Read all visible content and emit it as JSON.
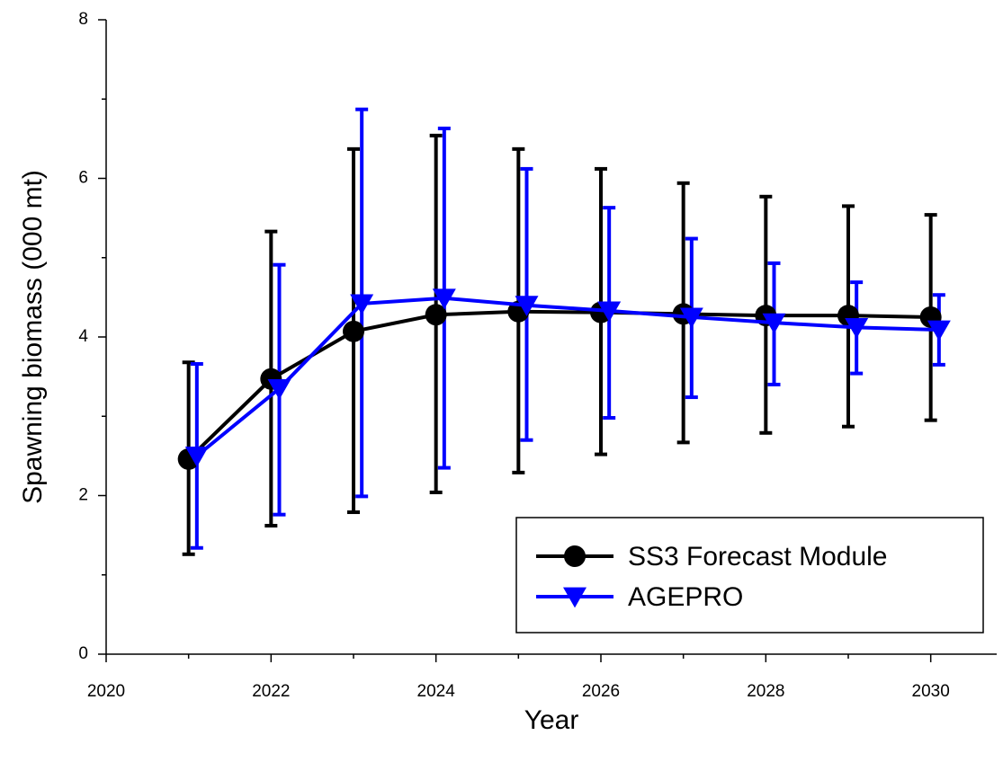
{
  "chart_data": {
    "type": "line",
    "x_label": "Year",
    "y_label": "Spawning biomass (000 mt)",
    "xlim": [
      2020,
      2030.8
    ],
    "ylim": [
      0,
      8
    ],
    "xticks": [
      2020,
      2022,
      2024,
      2026,
      2028,
      2030
    ],
    "xminorticks": [
      2021,
      2023,
      2025,
      2027,
      2029
    ],
    "yticks": [
      0,
      2,
      4,
      6,
      8
    ],
    "yminorticks": [
      1,
      3,
      5,
      7
    ],
    "grid": false,
    "legend": "lower right",
    "series": [
      {
        "name": "SS3 Forecast Module",
        "color": "#000000",
        "marker": "circle",
        "x": [
          2021,
          2022,
          2023,
          2024,
          2025,
          2026,
          2027,
          2028,
          2029,
          2030
        ],
        "values": [
          2.46,
          3.47,
          4.07,
          4.28,
          4.32,
          4.31,
          4.29,
          4.27,
          4.27,
          4.25
        ],
        "lower": [
          1.26,
          1.62,
          1.79,
          2.04,
          2.29,
          2.52,
          2.67,
          2.79,
          2.87,
          2.95
        ],
        "upper": [
          3.68,
          5.33,
          6.37,
          6.54,
          6.37,
          6.12,
          5.94,
          5.77,
          5.65,
          5.54
        ]
      },
      {
        "name": "AGEPRO",
        "color": "#0000ff",
        "marker": "triangle-down",
        "x": [
          2021.1,
          2022.1,
          2023.1,
          2024.1,
          2025.1,
          2026.1,
          2027.1,
          2028.1,
          2029.1,
          2030.1
        ],
        "values": [
          2.5,
          3.35,
          4.42,
          4.49,
          4.4,
          4.33,
          4.25,
          4.18,
          4.12,
          4.09
        ],
        "lower": [
          1.34,
          1.76,
          1.99,
          2.35,
          2.7,
          2.98,
          3.24,
          3.4,
          3.54,
          3.65
        ],
        "upper": [
          3.66,
          4.91,
          6.87,
          6.63,
          6.12,
          5.63,
          5.24,
          4.93,
          4.69,
          4.53
        ]
      }
    ]
  }
}
